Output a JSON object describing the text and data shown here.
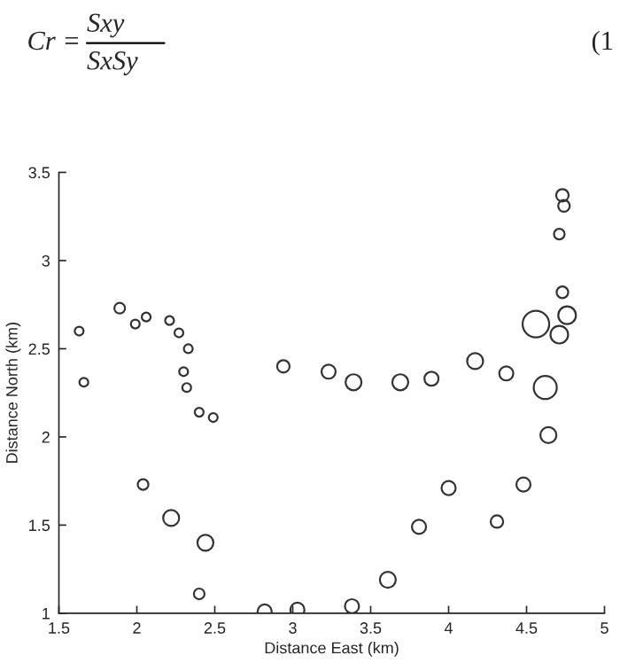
{
  "chart_data": {
    "type": "bubble",
    "xlabel": "Distance East (km)",
    "ylabel": "Distance North (km)",
    "annotations": [
      "Cr =",
      "Sxy",
      "SxSy",
      "(1"
    ],
    "x": [
      1.63,
      1.66,
      1.89,
      1.99,
      2.06,
      2.21,
      2.27,
      2.33,
      2.3,
      2.32,
      2.4,
      2.49,
      2.04,
      2.22,
      2.44,
      2.4,
      2.82,
      3.03,
      2.94,
      3.23,
      3.39,
      3.69,
      3.89,
      4.17,
      4.37,
      4.56,
      4.76,
      4.71,
      4.73,
      4.71,
      4.74,
      4.73,
      4.62,
      4.64,
      4.48,
      4.31,
      4.0,
      3.81,
      3.61,
      3.38
    ],
    "values": [
      2.6,
      2.31,
      2.73,
      2.64,
      2.68,
      2.66,
      2.59,
      2.5,
      2.37,
      2.28,
      2.14,
      2.11,
      1.73,
      1.54,
      1.4,
      1.11,
      1.01,
      1.02,
      2.4,
      2.37,
      2.31,
      2.31,
      2.33,
      2.43,
      2.36,
      2.64,
      2.69,
      2.58,
      2.82,
      3.15,
      3.31,
      3.37,
      2.28,
      2.01,
      1.73,
      1.52,
      1.71,
      1.49,
      1.19,
      1.04
    ],
    "sizes": [
      0.11,
      0.11,
      0.16,
      0.11,
      0.11,
      0.11,
      0.11,
      0.11,
      0.11,
      0.11,
      0.11,
      0.11,
      0.16,
      0.36,
      0.36,
      0.16,
      0.28,
      0.28,
      0.22,
      0.28,
      0.36,
      0.36,
      0.28,
      0.36,
      0.28,
      1,
      0.44,
      0.44,
      0.19,
      0.16,
      0.19,
      0.22,
      0.75,
      0.36,
      0.28,
      0.22,
      0.28,
      0.28,
      0.36,
      0.28
    ],
    "color": "#333333",
    "marker": "circle",
    "xlim": [
      1.5,
      5
    ],
    "ylim": [
      1,
      3.5
    ],
    "xticks": [
      1.5,
      2,
      2.5,
      3,
      3.5,
      4,
      4.5,
      5
    ],
    "yticks": [
      1,
      1.5,
      2,
      2.5,
      3,
      3.5
    ],
    "grid": false,
    "legend": false
  }
}
